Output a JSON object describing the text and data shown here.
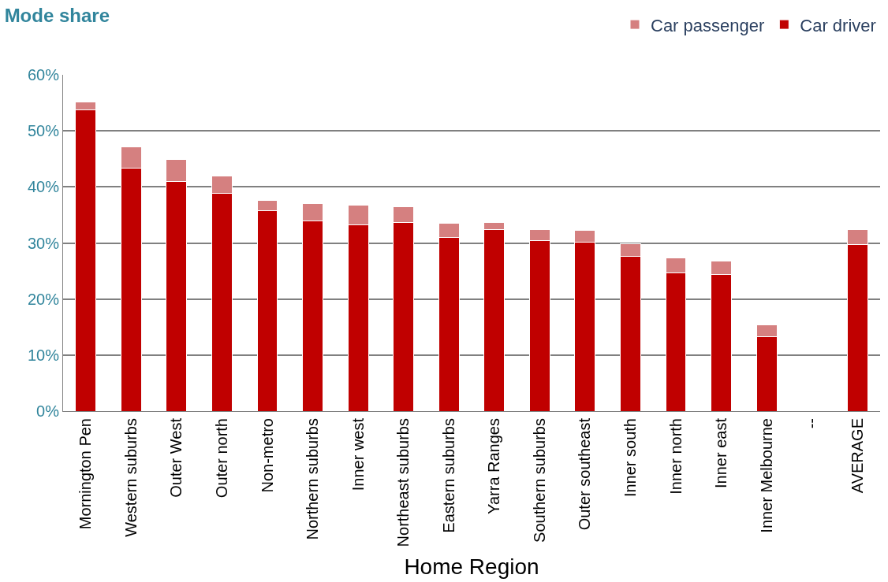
{
  "chart_data": {
    "type": "bar",
    "title": "Mode share",
    "xlabel": "Home Region",
    "stacked": true,
    "categories": [
      "Mornington Pen",
      "Western suburbs",
      "Outer West",
      "Outer north",
      "Non-metro",
      "Northern suburbs",
      "Inner west",
      "Northeast suburbs",
      "Eastern suburbs",
      "Yarra Ranges",
      "Southern suburbs",
      "Outer southeast",
      "Inner south",
      "Inner north",
      "Inner east",
      "Inner Melbourne",
      "--",
      "AVERAGE"
    ],
    "series": [
      {
        "name": "Car driver",
        "color": "#c00000",
        "values": [
          53.8,
          43.3,
          41.0,
          38.9,
          35.7,
          34.0,
          33.2,
          33.7,
          31.0,
          32.4,
          30.4,
          30.2,
          27.6,
          24.7,
          24.4,
          13.3,
          null,
          29.7
        ]
      },
      {
        "name": "Car passenger",
        "color": "#d58080",
        "values": [
          1.4,
          3.9,
          3.9,
          3.1,
          1.9,
          3.0,
          3.6,
          2.7,
          2.5,
          1.2,
          2.0,
          2.0,
          2.2,
          2.7,
          2.4,
          2.1,
          null,
          2.7
        ]
      }
    ],
    "ylim": [
      0,
      60
    ],
    "yticks": [
      {
        "value": 0,
        "label": "0%"
      },
      {
        "value": 10,
        "label": "10%"
      },
      {
        "value": 20,
        "label": "20%"
      },
      {
        "value": 30,
        "label": "30%"
      },
      {
        "value": 40,
        "label": "40%"
      },
      {
        "value": 50,
        "label": "50%"
      },
      {
        "value": 60,
        "label": "60%"
      }
    ],
    "grid": "y",
    "legend": "top right"
  }
}
